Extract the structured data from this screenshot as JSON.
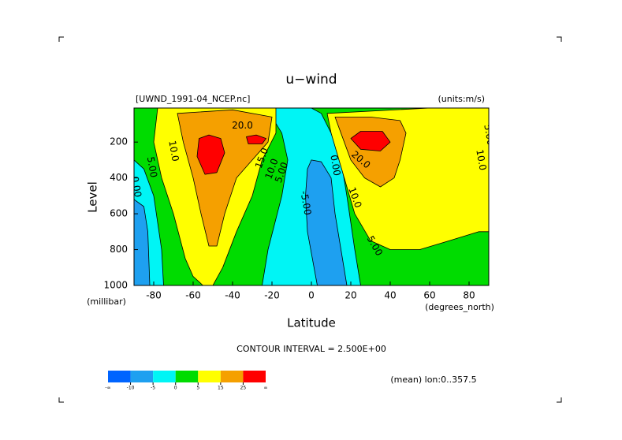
{
  "chart_data": {
    "type": "contour",
    "title": "u−wind",
    "file_label": "[UWND_1991-04_NCEP.nc]",
    "units_label": "(units:m/s)",
    "x_label": "Latitude",
    "x_units": "(degrees_north)",
    "y_label": "Level",
    "y_units": "(millibar)",
    "contour_interval": "CONTOUR INTERVAL = 2.500E+00",
    "footnote": "(mean) lon:0..357.5",
    "xlim": [
      -90,
      90
    ],
    "xticks": [
      -80,
      -60,
      -40,
      -20,
      0,
      20,
      40,
      60,
      80
    ],
    "ylim": [
      1000,
      10
    ],
    "yticks": [
      200,
      400,
      600,
      800,
      1000
    ],
    "levels": [
      -10,
      -5,
      0,
      5,
      15,
      25
    ],
    "edge_labels": [
      "-∞",
      "∞"
    ],
    "colors": [
      "#0064ff",
      "#1ea0f0",
      "#00f5f5",
      "#00dc00",
      "#ffff00",
      "#f5a000",
      "#ff0000"
    ],
    "contour_labels": [
      "20.0",
      "10.0",
      "5.00",
      "0.00",
      "15.0",
      "10.0",
      "5.00",
      "-5.00",
      "5.00",
      "10.0",
      "20.0",
      "10.0",
      "5.00",
      "0.00"
    ]
  }
}
